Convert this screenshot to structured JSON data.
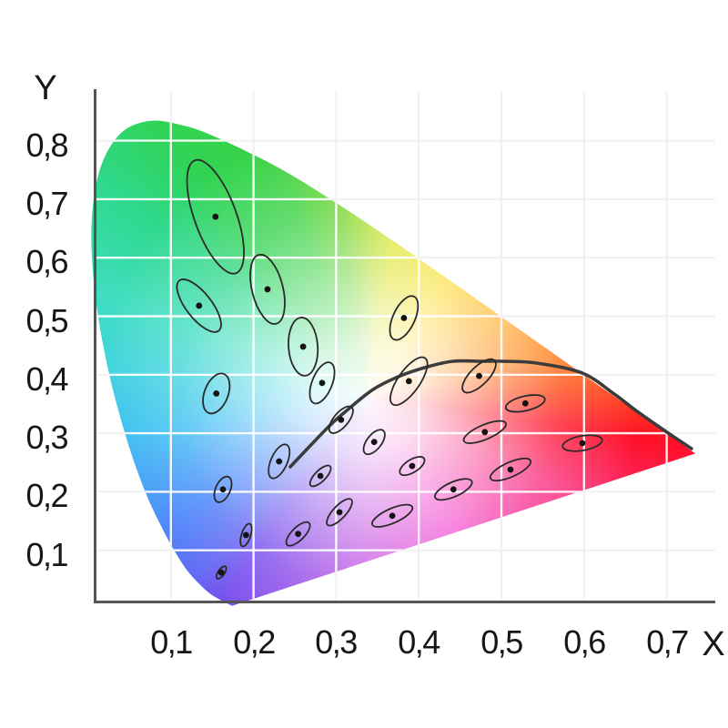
{
  "chart_data": {
    "type": "scatter",
    "title": "",
    "xlabel": "X",
    "ylabel": "Y",
    "xlim": [
      0,
      0.75
    ],
    "ylim": [
      0,
      0.88
    ],
    "grid": true,
    "x_ticks": {
      "values": [
        0.1,
        0.2,
        0.3,
        0.4,
        0.5,
        0.6,
        0.7
      ],
      "labels": [
        "0,1",
        "0,2",
        "0,3",
        "0,4",
        "0,5",
        "0,6",
        "0,7"
      ]
    },
    "y_ticks": {
      "values": [
        0.1,
        0.2,
        0.3,
        0.4,
        0.5,
        0.6,
        0.7,
        0.8
      ],
      "labels": [
        "0,1",
        "0,2",
        "0,3",
        "0,4",
        "0,5",
        "0,6",
        "0,7",
        "0,8"
      ]
    },
    "spectral_locus": [
      [
        0.1741,
        0.005
      ],
      [
        0.1566,
        0.0177
      ],
      [
        0.144,
        0.0297
      ],
      [
        0.1241,
        0.0578
      ],
      [
        0.1096,
        0.0868
      ],
      [
        0.0913,
        0.1327
      ],
      [
        0.0687,
        0.2007
      ],
      [
        0.0454,
        0.295
      ],
      [
        0.0235,
        0.4127
      ],
      [
        0.0082,
        0.5384
      ],
      [
        0.0039,
        0.6548
      ],
      [
        0.0139,
        0.7502
      ],
      [
        0.0389,
        0.812
      ],
      [
        0.0743,
        0.8338
      ],
      [
        0.1142,
        0.8262
      ],
      [
        0.1547,
        0.8059
      ],
      [
        0.2296,
        0.7543
      ],
      [
        0.3016,
        0.6923
      ],
      [
        0.3731,
        0.6245
      ],
      [
        0.4441,
        0.5547
      ],
      [
        0.5125,
        0.4866
      ],
      [
        0.5752,
        0.4242
      ],
      [
        0.627,
        0.3725
      ],
      [
        0.6658,
        0.334
      ],
      [
        0.6915,
        0.3083
      ],
      [
        0.714,
        0.2859
      ],
      [
        0.7347,
        0.2653
      ]
    ],
    "planckian_locus": [
      [
        0.2445,
        0.2426
      ],
      [
        0.2896,
        0.3095
      ],
      [
        0.3117,
        0.3375
      ],
      [
        0.3447,
        0.3748
      ],
      [
        0.3777,
        0.3981
      ],
      [
        0.4108,
        0.4137
      ],
      [
        0.4416,
        0.423
      ],
      [
        0.4769,
        0.423
      ],
      [
        0.5022,
        0.423
      ],
      [
        0.543,
        0.4199
      ],
      [
        0.598,
        0.4028
      ],
      [
        0.6366,
        0.367
      ],
      [
        0.6641,
        0.3375
      ],
      [
        0.7004,
        0.3017
      ],
      [
        0.7301,
        0.2737
      ]
    ],
    "ellipses": [
      {
        "x": 0.154,
        "y": 0.67,
        "a": 66,
        "b": 23,
        "rot": -20
      },
      {
        "x": 0.217,
        "y": 0.546,
        "a": 39,
        "b": 17,
        "rot": -14
      },
      {
        "x": 0.134,
        "y": 0.518,
        "a": 35,
        "b": 14,
        "rot": -38
      },
      {
        "x": 0.26,
        "y": 0.448,
        "a": 32,
        "b": 16,
        "rot": -4
      },
      {
        "x": 0.283,
        "y": 0.386,
        "a": 24,
        "b": 11,
        "rot": 22
      },
      {
        "x": 0.382,
        "y": 0.497,
        "a": 26,
        "b": 12,
        "rot": 25
      },
      {
        "x": 0.388,
        "y": 0.389,
        "a": 31,
        "b": 12,
        "rot": 35
      },
      {
        "x": 0.306,
        "y": 0.323,
        "a": 18,
        "b": 8,
        "rot": 40
      },
      {
        "x": 0.346,
        "y": 0.285,
        "a": 16,
        "b": 8,
        "rot": 38
      },
      {
        "x": 0.155,
        "y": 0.368,
        "a": 23,
        "b": 13,
        "rot": 21
      },
      {
        "x": 0.163,
        "y": 0.204,
        "a": 15,
        "b": 8,
        "rot": 24
      },
      {
        "x": 0.191,
        "y": 0.126,
        "a": 13,
        "b": 5,
        "rot": 18
      },
      {
        "x": 0.161,
        "y": 0.062,
        "a": 8,
        "b": 3.5,
        "rot": 35
      },
      {
        "x": 0.231,
        "y": 0.252,
        "a": 20,
        "b": 9,
        "rot": 24
      },
      {
        "x": 0.281,
        "y": 0.227,
        "a": 15,
        "b": 6,
        "rot": 45
      },
      {
        "x": 0.254,
        "y": 0.128,
        "a": 17,
        "b": 7,
        "rot": 45
      },
      {
        "x": 0.304,
        "y": 0.165,
        "a": 19,
        "b": 7,
        "rot": 43
      },
      {
        "x": 0.392,
        "y": 0.244,
        "a": 15.5,
        "b": 7,
        "rot": 58
      },
      {
        "x": 0.442,
        "y": 0.204,
        "a": 22,
        "b": 8,
        "rot": 66
      },
      {
        "x": 0.368,
        "y": 0.159,
        "a": 24,
        "b": 8,
        "rot": 66
      },
      {
        "x": 0.529,
        "y": 0.351,
        "a": 22,
        "b": 8,
        "rot": 77
      },
      {
        "x": 0.48,
        "y": 0.302,
        "a": 25,
        "b": 8,
        "rot": 67
      },
      {
        "x": 0.511,
        "y": 0.238,
        "a": 24,
        "b": 8,
        "rot": 66
      },
      {
        "x": 0.473,
        "y": 0.398,
        "a": 24,
        "b": 10,
        "rot": 45
      },
      {
        "x": 0.598,
        "y": 0.283,
        "a": 22,
        "b": 8,
        "rot": 80
      }
    ],
    "colors": {
      "axis": "#555555",
      "curve": "#3c3c3c",
      "ellipse_stroke": "#2a2a2a",
      "dot": "#141414",
      "grid_white": "rgba(255,255,255,0.92)",
      "grid_faint": "#f1f1f1",
      "white_center": "#ffffff",
      "wheel": [
        {
          "a": 0,
          "c": "#a8da20"
        },
        {
          "a": 9,
          "c": "#d8e312"
        },
        {
          "a": 35,
          "c": "#ffd918"
        },
        {
          "a": 61,
          "c": "#ffa61e"
        },
        {
          "a": 78,
          "c": "#ff7c13"
        },
        {
          "a": 88,
          "c": "#ff4713"
        },
        {
          "a": 99,
          "c": "#ff1028"
        },
        {
          "a": 116,
          "c": "#fa3381"
        },
        {
          "a": 149,
          "c": "#f23ecf"
        },
        {
          "a": 180,
          "c": "#c44be0"
        },
        {
          "a": 216,
          "c": "#6f46ee"
        },
        {
          "a": 223,
          "c": "#5b5ef2"
        },
        {
          "a": 237,
          "c": "#3f7dfb"
        },
        {
          "a": 261,
          "c": "#33bdf2"
        },
        {
          "a": 277,
          "c": "#3ed3dd"
        },
        {
          "a": 291,
          "c": "#3fdec0"
        },
        {
          "a": 310,
          "c": "#2fd888"
        },
        {
          "a": 322,
          "c": "#30d455"
        },
        {
          "a": 338,
          "c": "#3bd243"
        },
        {
          "a": 350,
          "c": "#66d42c"
        },
        {
          "a": 360,
          "c": "#a8da20"
        }
      ]
    }
  }
}
